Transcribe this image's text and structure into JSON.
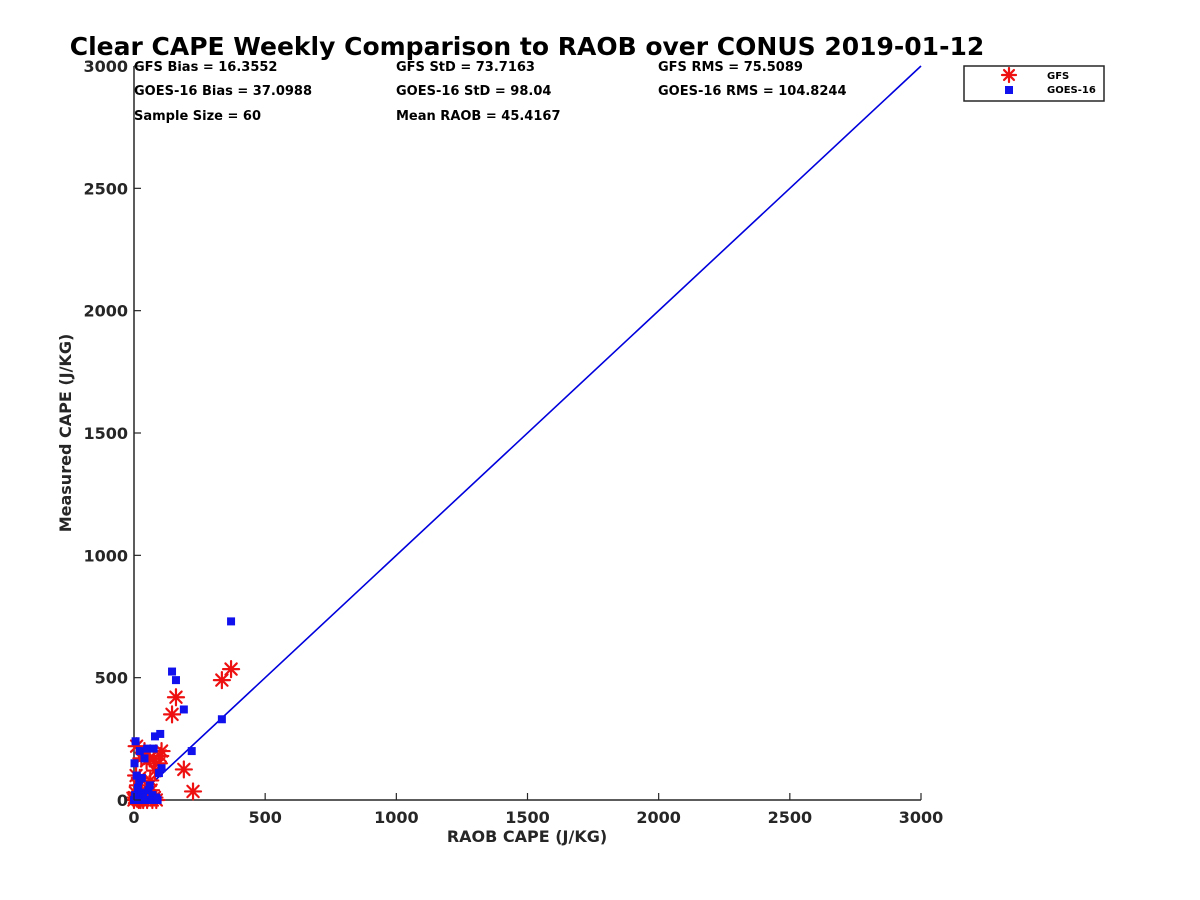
{
  "chart_data": {
    "type": "scatter",
    "title": "Clear CAPE Weekly Comparison to RAOB over CONUS 2019-01-12",
    "xlabel": "RAOB CAPE (J/KG)",
    "ylabel": "Measured CAPE (J/KG)",
    "xlim": [
      0,
      3000
    ],
    "ylim": [
      0,
      3000
    ],
    "xticks": [
      "0",
      "500",
      "1000",
      "1500",
      "2000",
      "2500",
      "3000"
    ],
    "yticks": [
      "0",
      "500",
      "1000",
      "1500",
      "2000",
      "2500",
      "3000"
    ],
    "grid": false,
    "legend_position": "top-right-outside",
    "reference_line": {
      "x": [
        0,
        3000
      ],
      "y": [
        0,
        3000
      ],
      "color": "#0000dd"
    },
    "stats": [
      "GFS Bias = 16.3552",
      "GFS StD = 73.7163",
      "GFS RMS = 75.5089",
      "GOES-16 Bias = 37.0988",
      "GOES-16 StD = 98.04",
      "GOES-16 RMS = 104.8244",
      "Sample Size = 60",
      "Mean RAOB = 45.4167"
    ],
    "series": [
      {
        "name": "GFS",
        "marker": "asterisk",
        "color": "#ee1111",
        "points": [
          [
            0,
            0
          ],
          [
            2,
            10
          ],
          [
            5,
            30
          ],
          [
            8,
            100
          ],
          [
            10,
            220
          ],
          [
            12,
            5
          ],
          [
            15,
            60
          ],
          [
            18,
            0
          ],
          [
            20,
            20
          ],
          [
            22,
            90
          ],
          [
            25,
            0
          ],
          [
            28,
            170
          ],
          [
            30,
            40
          ],
          [
            35,
            0
          ],
          [
            38,
            10
          ],
          [
            40,
            200
          ],
          [
            45,
            30
          ],
          [
            48,
            160
          ],
          [
            50,
            0
          ],
          [
            55,
            10
          ],
          [
            60,
            170
          ],
          [
            62,
            80
          ],
          [
            65,
            40
          ],
          [
            70,
            0
          ],
          [
            75,
            170
          ],
          [
            78,
            10
          ],
          [
            80,
            120
          ],
          [
            85,
            0
          ],
          [
            95,
            150
          ],
          [
            100,
            180
          ],
          [
            105,
            200
          ],
          [
            145,
            350
          ],
          [
            160,
            420
          ],
          [
            190,
            125
          ],
          [
            225,
            35
          ],
          [
            335,
            490
          ],
          [
            370,
            535
          ]
        ]
      },
      {
        "name": "GOES-16",
        "marker": "square",
        "color": "#1111ee",
        "points": [
          [
            0,
            0
          ],
          [
            2,
            150
          ],
          [
            4,
            20
          ],
          [
            6,
            240
          ],
          [
            8,
            0
          ],
          [
            10,
            100
          ],
          [
            12,
            10
          ],
          [
            15,
            50
          ],
          [
            18,
            0
          ],
          [
            20,
            80
          ],
          [
            22,
            200
          ],
          [
            25,
            0
          ],
          [
            28,
            30
          ],
          [
            30,
            90
          ],
          [
            35,
            10
          ],
          [
            40,
            170
          ],
          [
            45,
            0
          ],
          [
            50,
            210
          ],
          [
            55,
            40
          ],
          [
            60,
            60
          ],
          [
            65,
            0
          ],
          [
            70,
            20
          ],
          [
            75,
            210
          ],
          [
            80,
            260
          ],
          [
            85,
            10
          ],
          [
            90,
            0
          ],
          [
            95,
            110
          ],
          [
            100,
            270
          ],
          [
            105,
            130
          ],
          [
            145,
            525
          ],
          [
            160,
            490
          ],
          [
            190,
            370
          ],
          [
            220,
            200
          ],
          [
            335,
            330
          ],
          [
            370,
            730
          ]
        ]
      }
    ]
  }
}
